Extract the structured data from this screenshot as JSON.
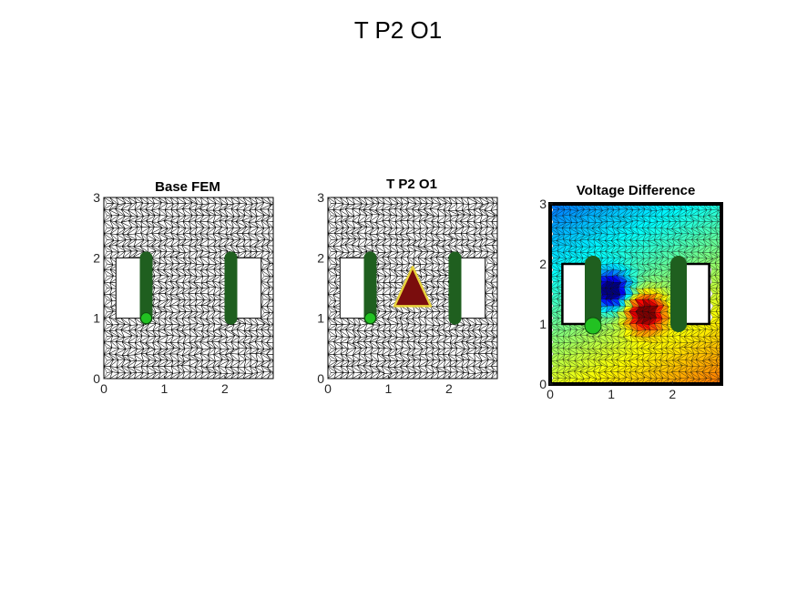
{
  "figure": {
    "title": "T P2 O1"
  },
  "chart_data": [
    {
      "type": "mesh",
      "title": "Base FEM",
      "xlim": [
        0,
        2.8
      ],
      "ylim": [
        0,
        3
      ],
      "xticks": [
        "0",
        "1",
        "2"
      ],
      "yticks": [
        "0",
        "1",
        "2",
        "3"
      ],
      "holes": [
        {
          "x": [
            0.2,
            0.7
          ],
          "y": [
            1.0,
            2.0
          ]
        },
        {
          "x": [
            2.1,
            2.6
          ],
          "y": [
            1.0,
            2.0
          ]
        }
      ],
      "electrodes": [
        {
          "x": 0.7,
          "y": [
            1.0,
            2.0
          ]
        },
        {
          "x": 2.1,
          "y": [
            1.0,
            2.0
          ]
        }
      ],
      "inclusion": null,
      "colors": {
        "mesh": "#000000",
        "electrode": "#1f5f1f",
        "electrode_highlight": "#22c122"
      }
    },
    {
      "type": "mesh",
      "title": "T P2 O1",
      "xlim": [
        0,
        2.8
      ],
      "ylim": [
        0,
        3
      ],
      "xticks": [
        "0",
        "1",
        "2"
      ],
      "yticks": [
        "0",
        "1",
        "2",
        "3"
      ],
      "holes": [
        {
          "x": [
            0.2,
            0.7
          ],
          "y": [
            1.0,
            2.0
          ]
        },
        {
          "x": [
            2.1,
            2.6
          ],
          "y": [
            1.0,
            2.0
          ]
        }
      ],
      "electrodes": [
        {
          "x": 0.7,
          "y": [
            1.0,
            2.0
          ]
        },
        {
          "x": 2.1,
          "y": [
            1.0,
            2.0
          ]
        }
      ],
      "inclusion": {
        "shape": "triangle",
        "vertices": [
          [
            1.4,
            1.85
          ],
          [
            1.1,
            1.2
          ],
          [
            1.7,
            1.2
          ]
        ],
        "color": "#7a0d0d",
        "edge": "#e8d23a"
      },
      "colors": {
        "mesh": "#000000",
        "electrode": "#1f5f1f",
        "electrode_highlight": "#22c122"
      }
    },
    {
      "type": "heatmap",
      "title": "Voltage Difference",
      "xlim": [
        0,
        2.8
      ],
      "ylim": [
        0,
        3
      ],
      "xticks": [
        "0",
        "1",
        "2"
      ],
      "yticks": [
        "0",
        "1",
        "2",
        "3"
      ],
      "holes": [
        {
          "x": [
            0.2,
            0.7
          ],
          "y": [
            1.0,
            2.0
          ]
        },
        {
          "x": [
            2.1,
            2.6
          ],
          "y": [
            1.0,
            2.0
          ]
        }
      ],
      "electrodes": [
        {
          "x": 0.7,
          "y": [
            1.0,
            2.0
          ]
        },
        {
          "x": 2.1,
          "y": [
            1.0,
            2.0
          ]
        }
      ],
      "dipole": [
        {
          "x": 1.0,
          "y": 1.55,
          "sign": -1
        },
        {
          "x": 1.55,
          "y": 1.2,
          "sign": 1
        }
      ],
      "colormap": "jet",
      "colors": {
        "mesh": "#000000",
        "electrode": "#1f5f1f",
        "electrode_highlight": "#22c122"
      }
    }
  ]
}
